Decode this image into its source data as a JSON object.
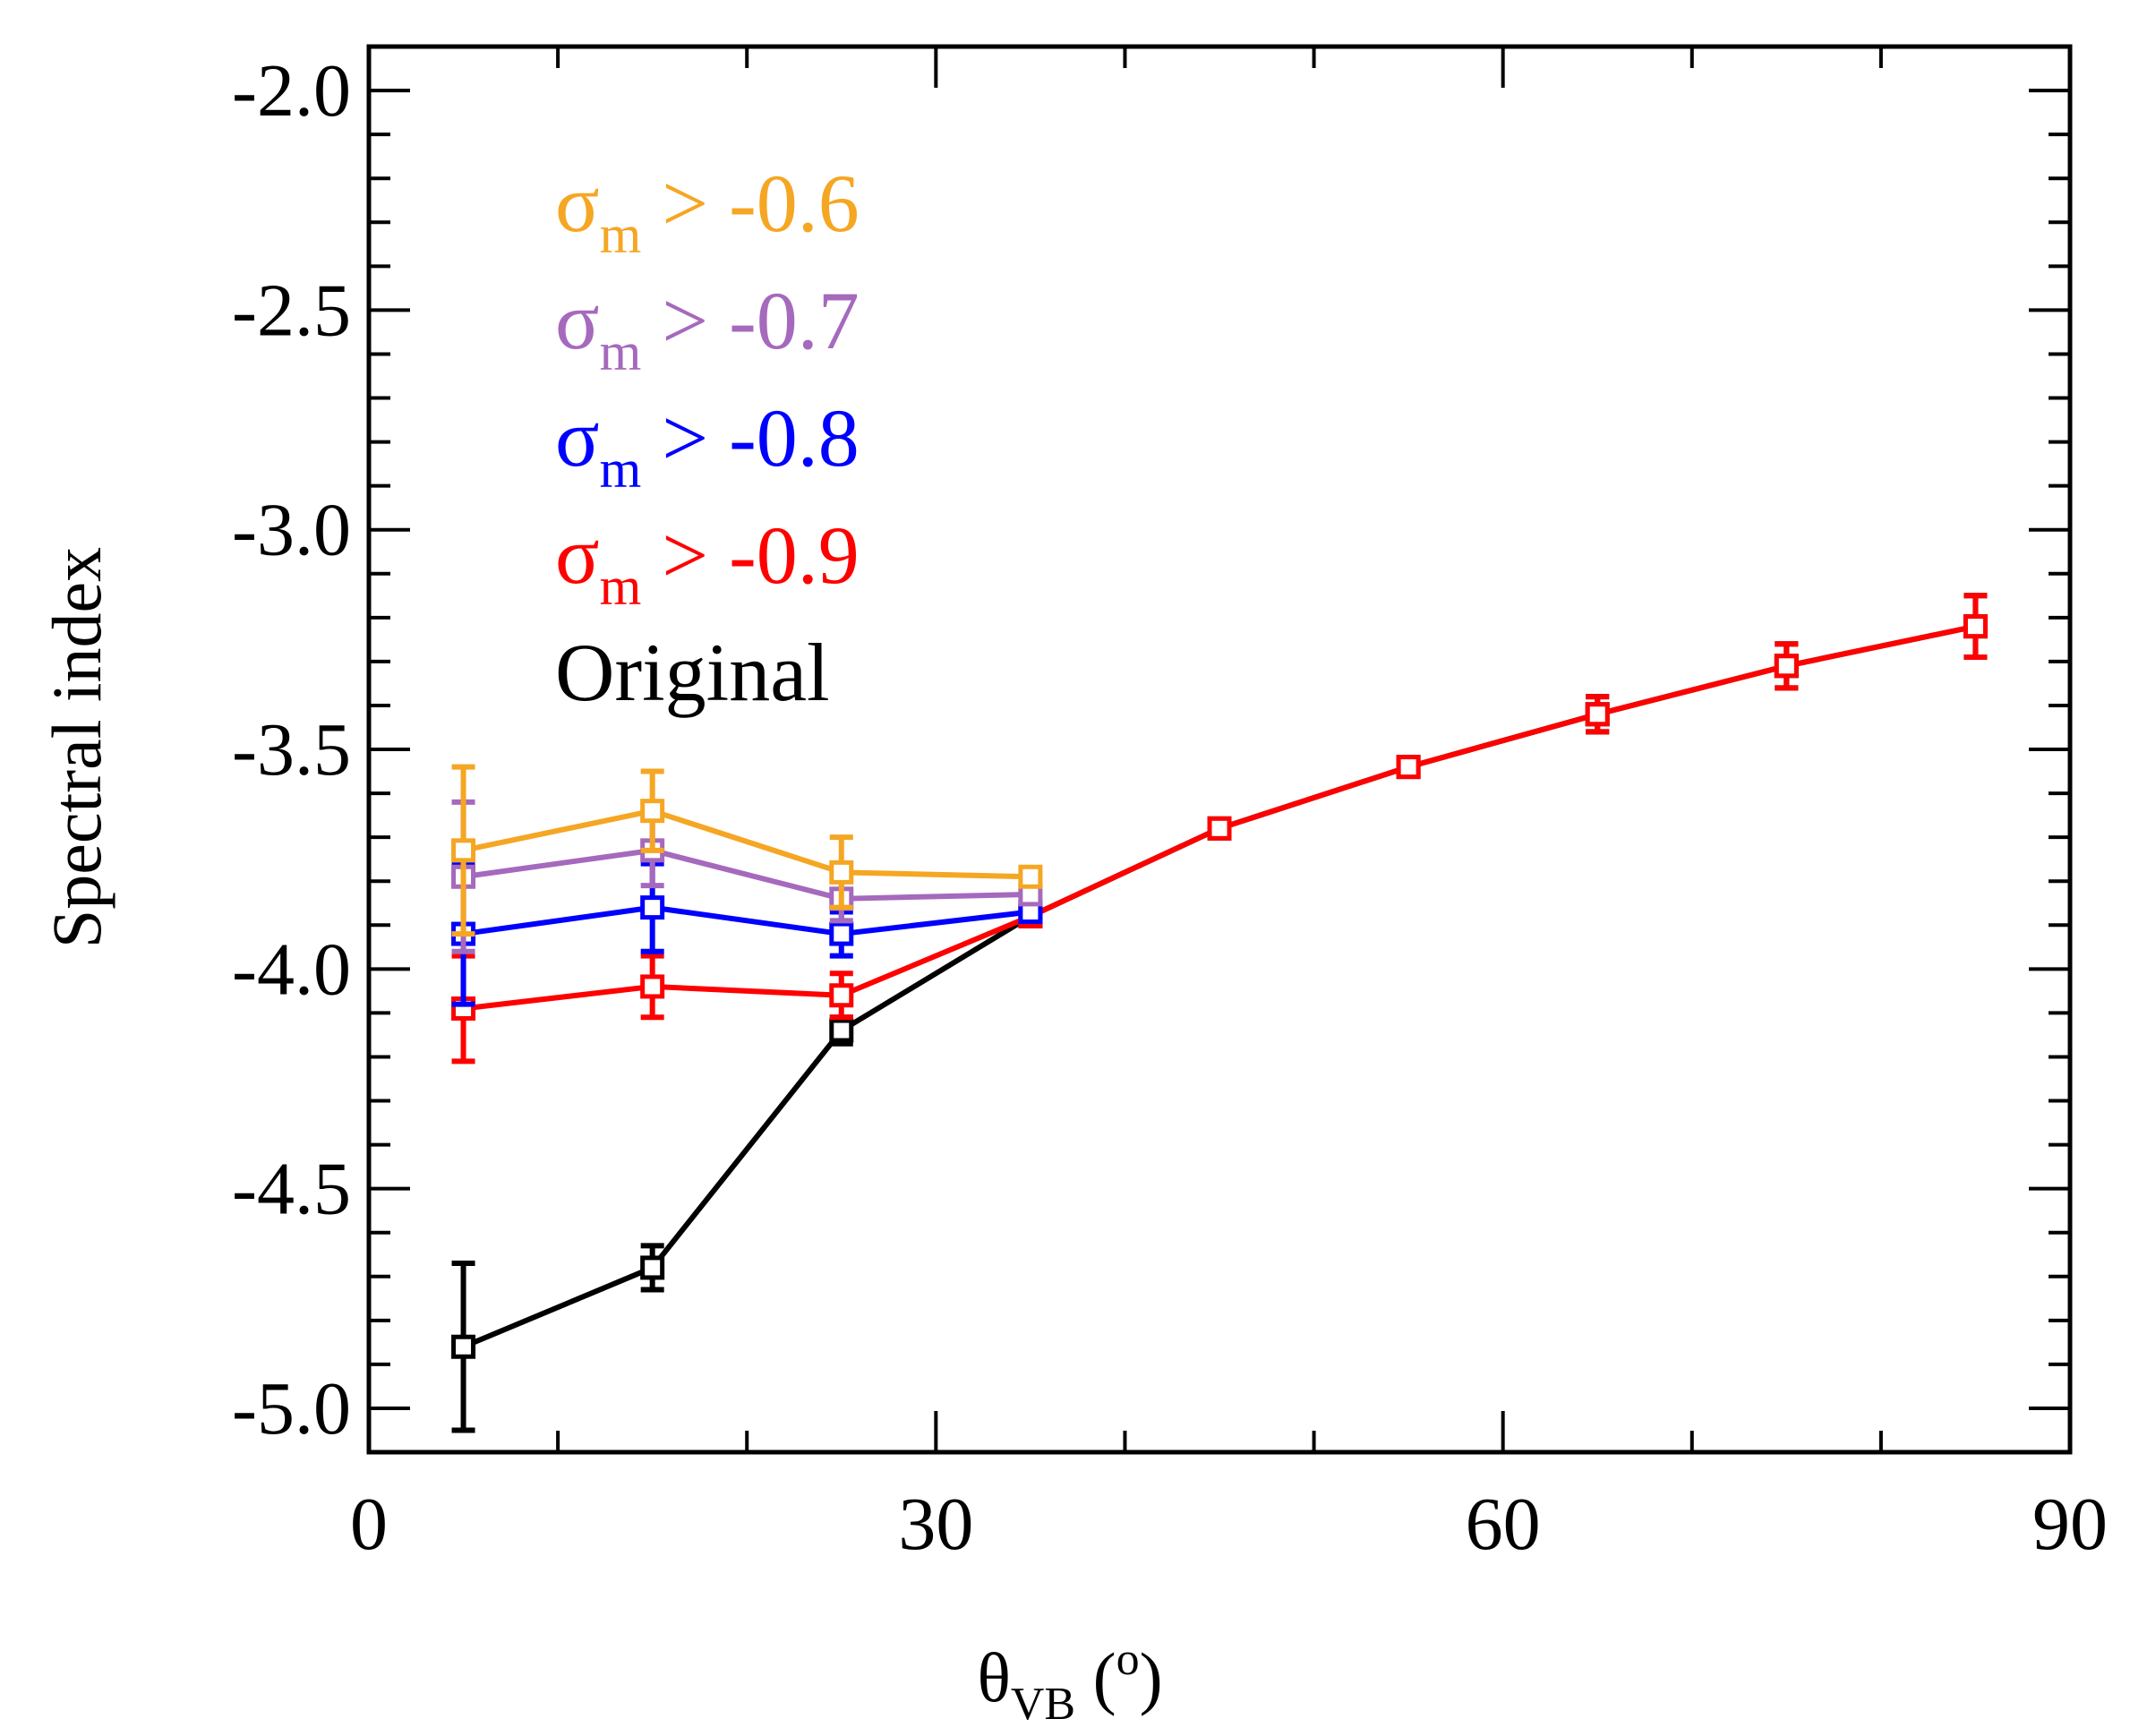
{
  "chart_data": {
    "type": "line",
    "xlabel": {
      "main": "θ",
      "sub": "VB",
      "tail": " (",
      "sup": "o",
      "close": ")"
    },
    "ylabel": "Spectral index",
    "xlim": [
      0,
      90
    ],
    "ylim": [
      -5.1,
      -1.9
    ],
    "xticks": [
      0,
      30,
      60,
      90
    ],
    "xtick_labels": [
      "0",
      "30",
      "60",
      "90"
    ],
    "xminor_step": 10,
    "yticks": [
      -5.0,
      -4.5,
      -4.0,
      -3.5,
      -3.0,
      -2.5,
      -2.0
    ],
    "ytick_labels": [
      "-5.0",
      "-4.5",
      "-4.0",
      "-3.5",
      "-3.0",
      "-2.5",
      "-2.0"
    ],
    "yminor_step": 0.1,
    "grid": false,
    "legend_position": "top-left",
    "series": [
      {
        "name": "Original",
        "legend": {
          "sym": "",
          "sub": "",
          "text": "Original"
        },
        "color": "#000000",
        "x": [
          5,
          15,
          25,
          35,
          45,
          55,
          65,
          75,
          85
        ],
        "y": [
          -4.86,
          -4.68,
          -4.14,
          -3.88,
          -3.68,
          -3.54,
          -3.42,
          -3.31,
          -3.22
        ],
        "err": [
          0.19,
          0.05,
          0.03,
          0.02,
          0.02,
          0.02,
          0.04,
          0.05,
          0.07
        ]
      },
      {
        "name": "σm > -0.9",
        "legend": {
          "sym": "σ",
          "sub": "m",
          "text": " > -0.9"
        },
        "color": "#ff0000",
        "x": [
          5,
          15,
          25,
          35,
          45,
          55,
          65,
          75,
          85
        ],
        "y": [
          -4.09,
          -4.04,
          -4.06,
          -3.88,
          -3.68,
          -3.54,
          -3.42,
          -3.31,
          -3.22
        ],
        "err": [
          0.12,
          0.07,
          0.05,
          0.02,
          0.02,
          0.02,
          0.04,
          0.05,
          0.07
        ]
      },
      {
        "name": "σm > -0.8",
        "legend": {
          "sym": "σ",
          "sub": "m",
          "text": " > -0.8"
        },
        "color": "#0000ff",
        "x": [
          5,
          15,
          25,
          35
        ],
        "y": [
          -3.92,
          -3.86,
          -3.92,
          -3.87
        ],
        "err": [
          0.16,
          0.1,
          0.05,
          0.02
        ]
      },
      {
        "name": "σm > -0.7",
        "legend": {
          "sym": "σ",
          "sub": "m",
          "text": " > -0.7"
        },
        "color": "#a569bd",
        "x": [
          5,
          15,
          25,
          35
        ],
        "y": [
          -3.79,
          -3.73,
          -3.84,
          -3.83
        ],
        "err": [
          0.17,
          0.08,
          0.05,
          0.02
        ]
      },
      {
        "name": "σm > -0.6",
        "legend": {
          "sym": "σ",
          "sub": "m",
          "text": " > -0.6"
        },
        "color": "#f5a623",
        "x": [
          5,
          15,
          25,
          35
        ],
        "y": [
          -3.73,
          -3.64,
          -3.78,
          -3.79
        ],
        "err": [
          0.19,
          0.09,
          0.08,
          0.02
        ]
      }
    ],
    "legend_order": [
      4,
      3,
      2,
      1,
      0
    ]
  }
}
